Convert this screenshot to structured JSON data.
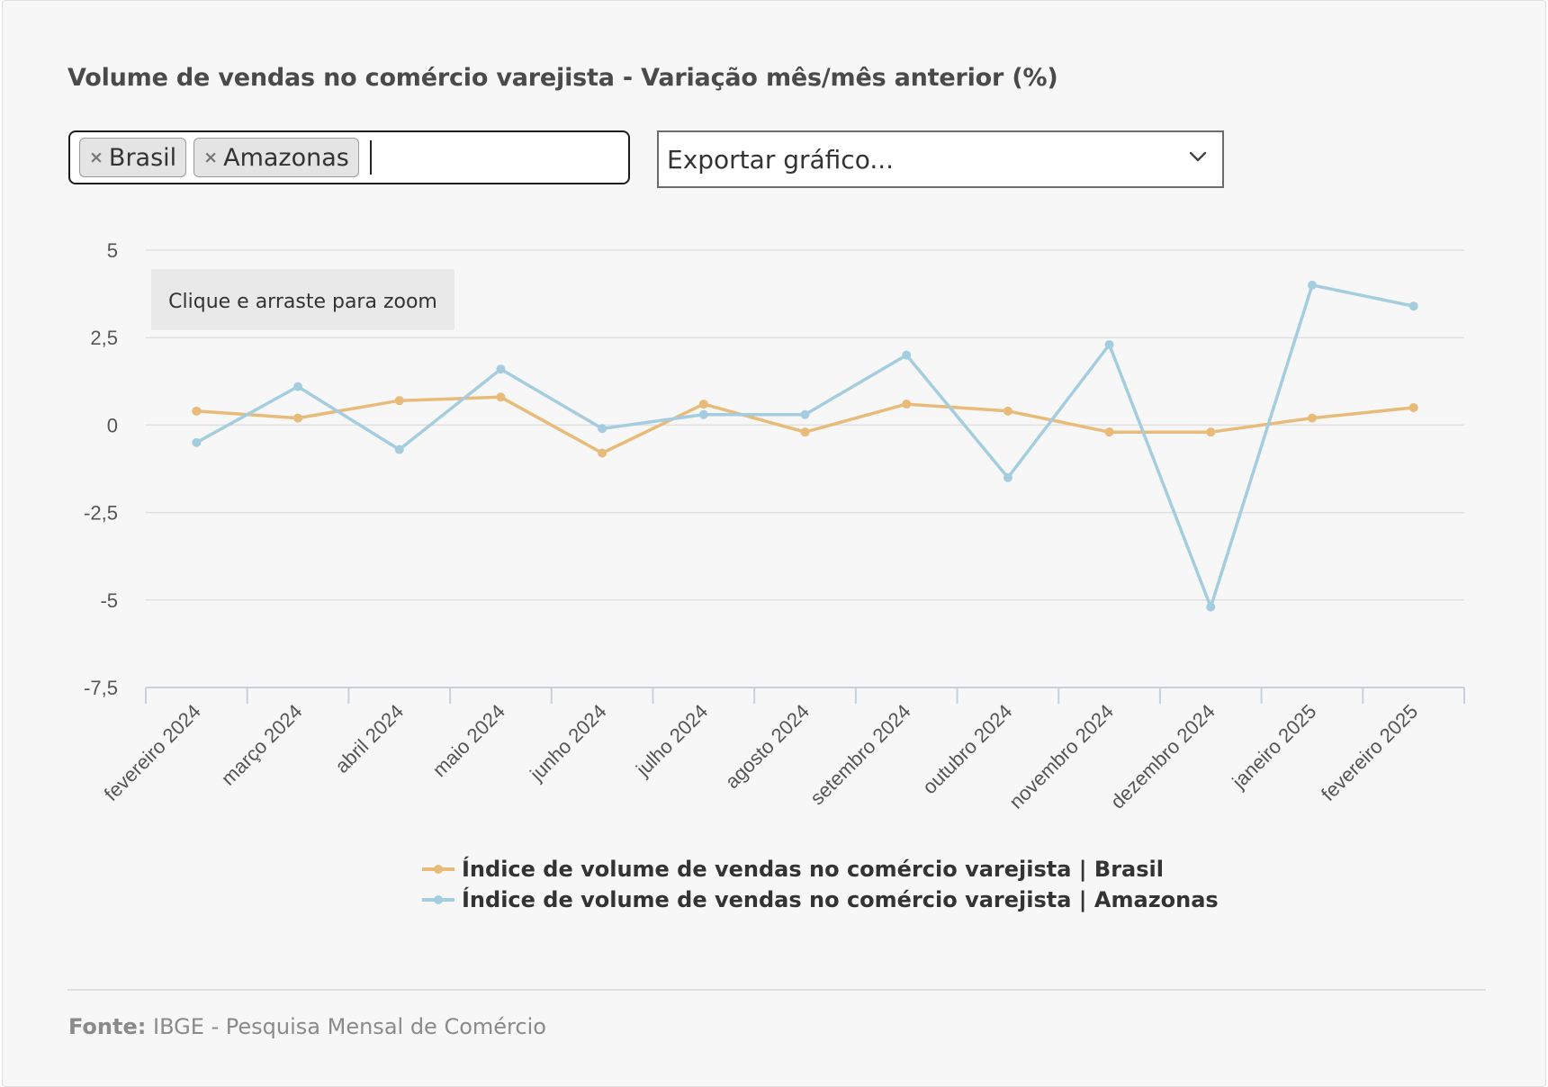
{
  "title": "Volume de vendas no comércio varejista - Variação mês/mês anterior (%)",
  "region_filter": {
    "tags": [
      {
        "label": "Brasil",
        "remove_glyph": "×"
      },
      {
        "label": "Amazonas",
        "remove_glyph": "×"
      }
    ]
  },
  "export": {
    "selected": "Exportar gráfico...",
    "icon": "chevron-down-icon"
  },
  "zoom_hint": "Clique e arraste para zoom",
  "source": {
    "label": "Fonte:",
    "text": "IBGE - Pesquisa Mensal de Comércio"
  },
  "colors": {
    "brasil": "#e8bb79",
    "amazonas": "#a5cde0",
    "grid": "#e0e0e0",
    "axis": "#c8d0e0",
    "tick_text": "#555555"
  },
  "chart_data": {
    "type": "line",
    "title": "Volume de vendas no comércio varejista - Variação mês/mês anterior (%)",
    "xlabel": "",
    "ylabel": "",
    "categories": [
      "fevereiro 2024",
      "março 2024",
      "abril 2024",
      "maio 2024",
      "junho 2024",
      "julho 2024",
      "agosto 2024",
      "setembro 2024",
      "outubro 2024",
      "novembro 2024",
      "dezembro 2024",
      "janeiro 2025",
      "fevereiro 2025"
    ],
    "ylim": [
      -7.5,
      5
    ],
    "yticks": [
      5,
      2.5,
      0,
      -2.5,
      -5,
      -7.5
    ],
    "ytick_labels": [
      "5",
      "2,5",
      "0",
      "-2,5",
      "-5",
      "-7,5"
    ],
    "grid": true,
    "legend_position": "bottom-center",
    "series": [
      {
        "name": "Índice de volume de vendas no comércio varejista | Brasil",
        "color": "#e8bb79",
        "values": [
          0.4,
          0.2,
          0.7,
          0.8,
          -0.8,
          0.6,
          -0.2,
          0.6,
          0.4,
          -0.2,
          -0.2,
          0.2,
          0.5
        ]
      },
      {
        "name": "Índice de volume de vendas no comércio varejista | Amazonas",
        "color": "#a5cde0",
        "values": [
          -0.5,
          1.1,
          -0.7,
          1.6,
          -0.1,
          0.3,
          0.3,
          2.0,
          -1.5,
          2.3,
          -5.2,
          4.0,
          3.4
        ]
      }
    ]
  }
}
